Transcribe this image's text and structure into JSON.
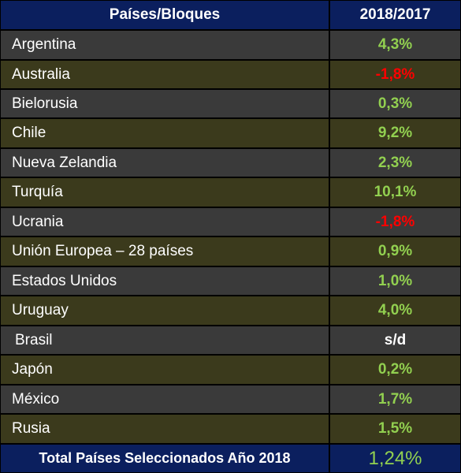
{
  "header": {
    "col1": "Países/Bloques",
    "col2": "2018/2017"
  },
  "rows": [
    {
      "country": "Argentina",
      "value": "4,3%",
      "sign": "pos"
    },
    {
      "country": "Australia",
      "value": "-1,8%",
      "sign": "neg"
    },
    {
      "country": "Bielorusia",
      "value": "0,3%",
      "sign": "pos"
    },
    {
      "country": "Chile",
      "value": "9,2%",
      "sign": "pos"
    },
    {
      "country": "Nueva Zelandia",
      "value": "2,3%",
      "sign": "pos"
    },
    {
      "country": "Turquía",
      "value": "10,1%",
      "sign": "pos"
    },
    {
      "country": "Ucrania",
      "value": "-1,8%",
      "sign": "neg"
    },
    {
      "country": "Unión Europea – 28 países",
      "value": "0,9%",
      "sign": "pos"
    },
    {
      "country": "Estados Unidos",
      "value": "1,0%",
      "sign": "pos"
    },
    {
      "country": "Uruguay",
      "value": "4,0%",
      "sign": "pos"
    },
    {
      "country": "Brasil",
      "value": "s/d",
      "sign": "neutral"
    },
    {
      "country": "Japón",
      "value": "0,2%",
      "sign": "pos"
    },
    {
      "country": "México",
      "value": "1,7%",
      "sign": "pos"
    },
    {
      "country": "Rusia",
      "value": "1,5%",
      "sign": "pos"
    }
  ],
  "footer": {
    "label": "Total Países Seleccionados Año 2018",
    "value": "1,24%"
  },
  "colors": {
    "header_bg": "#0b1f5e",
    "row_dark": "#3a3a3a",
    "row_olive": "#3b3a1c",
    "positive": "#92d050",
    "negative": "#ff0000",
    "neutral": "#ffffff"
  }
}
